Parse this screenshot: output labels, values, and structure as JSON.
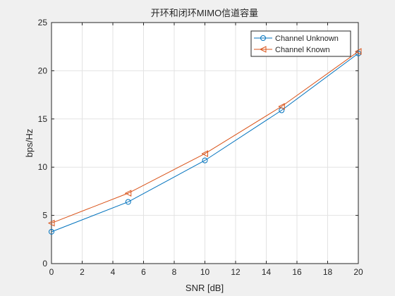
{
  "chart_data": {
    "type": "line",
    "title": "开环和闭环MIMO信道容量",
    "xlabel": "SNR [dB]",
    "ylabel": "bps/Hz",
    "xlim": [
      0,
      20
    ],
    "ylim": [
      0,
      25
    ],
    "xticks": [
      0,
      2,
      4,
      6,
      8,
      10,
      12,
      14,
      16,
      18,
      20
    ],
    "yticks": [
      0,
      5,
      10,
      15,
      20,
      25
    ],
    "grid": true,
    "legend_position": "top-right",
    "x": [
      0,
      5,
      10,
      15,
      20
    ],
    "series": [
      {
        "name": "Channel Unknown",
        "values": [
          3.3,
          6.4,
          10.7,
          15.9,
          21.8
        ],
        "color": "#0072BD",
        "marker": "circle"
      },
      {
        "name": "Channel Known",
        "values": [
          4.2,
          7.3,
          11.4,
          16.3,
          22.0
        ],
        "color": "#D95319",
        "marker": "triangle-left"
      }
    ]
  }
}
